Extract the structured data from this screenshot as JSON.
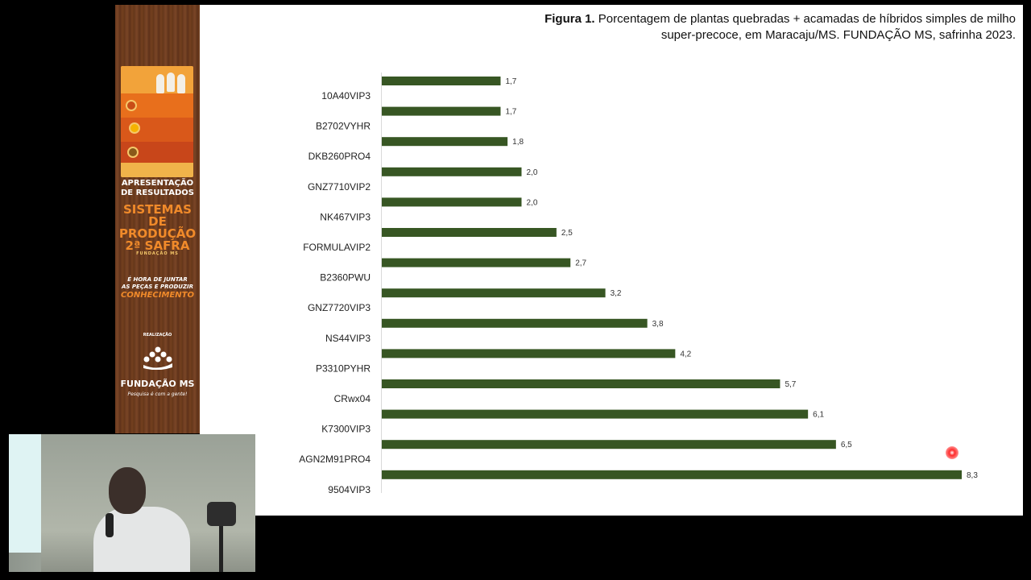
{
  "sidebar": {
    "line1": "APRESENTAÇÃO",
    "line2": "DE RESULTADOS",
    "line3": "SISTEMAS DE",
    "line4": "PRODUÇÃO",
    "line5": "2ª SAFRA",
    "line6": "FUNDAÇÃO MS",
    "slogan1": "É HORA DE JUNTAR",
    "slogan2": "AS PEÇAS E PRODUZIR",
    "slogan3": "CONHECIMENTO",
    "realizacao": "REALIZAÇÃO",
    "logo": "FUNDAÇÃO MS",
    "logo_tagline": "Pesquisa é com a gente!"
  },
  "chart_data": {
    "type": "bar",
    "orientation": "horizontal",
    "title_bold": "Figura 1.",
    "title": "Porcentagem de plantas quebradas + acamadas de híbridos simples de milho super-precoce, em Maracaju/MS. FUNDAÇÃO MS, safrinha 2023.",
    "categories": [
      "10A40VIP3",
      "B2702VYHR",
      "DKB260PRO4",
      "GNZ7710VIP2",
      "NK467VIP3",
      "FORMULAVIP2",
      "B2360PWU",
      "GNZ7720VIP3",
      "NS44VIP3",
      "P3310PYHR",
      "CRwx04",
      "K7300VIP3",
      "AGN2M91PRO4",
      "9504VIP3"
    ],
    "values": [
      1.7,
      1.7,
      1.8,
      2.0,
      2.0,
      2.5,
      2.7,
      3.2,
      3.8,
      4.2,
      5.7,
      6.1,
      6.5,
      8.3
    ],
    "value_labels": [
      "1,7",
      "1,7",
      "1,8",
      "2,0",
      "2,0",
      "2,5",
      "2,7",
      "3,2",
      "3,8",
      "4,2",
      "5,7",
      "6,1",
      "6,5",
      "8,3"
    ],
    "xlim": [
      0,
      8.3
    ],
    "bar_color": "#375623",
    "grid": false,
    "legend": "none"
  }
}
